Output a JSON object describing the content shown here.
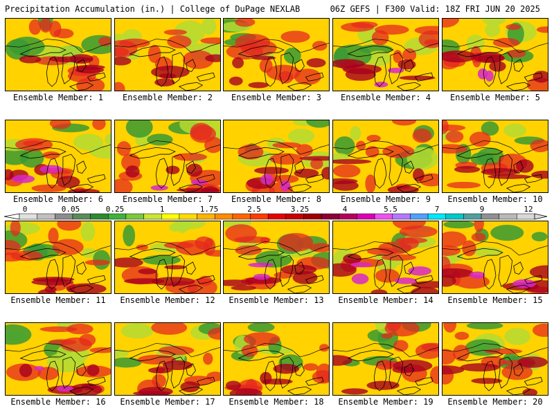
{
  "header": {
    "title": "Precipitation Accumulation (in.) | College of DuPage NEXLAB",
    "valid": "06Z GEFS | F300 Valid: 18Z FRI JUN 20 2025"
  },
  "members": [
    "Ensemble Member: 1",
    "Ensemble Member: 2",
    "Ensemble Member: 3",
    "Ensemble Member: 4",
    "Ensemble Member: 5",
    "Ensemble Member: 6",
    "Ensemble Member: 7",
    "Ensemble Member: 8",
    "Ensemble Member: 9",
    "Ensemble Member: 10",
    "Ensemble Member: 11",
    "Ensemble Member: 12",
    "Ensemble Member: 13",
    "Ensemble Member: 14",
    "Ensemble Member: 15",
    "Ensemble Member: 16",
    "Ensemble Member: 17",
    "Ensemble Member: 18",
    "Ensemble Member: 19",
    "Ensemble Member: 20"
  ],
  "legend": {
    "ticks": [
      "0",
      "0.05",
      "0.25",
      "1",
      "1.75",
      "2.5",
      "3.25",
      "4",
      "5.5",
      "7",
      "9",
      "12"
    ],
    "colors": [
      "#e0e0e0",
      "#c0c0c0",
      "#8c8c8c",
      "#5a8c5a",
      "#2e8b2e",
      "#3cb33c",
      "#7cc83c",
      "#c8e632",
      "#ffff00",
      "#ffdc00",
      "#ffb400",
      "#ff8c00",
      "#ff6400",
      "#ff3c00",
      "#e60000",
      "#c80000",
      "#a00000",
      "#8c0032",
      "#b4005a",
      "#dc00b4",
      "#f050f0",
      "#b478ff",
      "#50a0ff",
      "#00e6ff",
      "#00c8c8",
      "#50a0a0",
      "#909090",
      "#b8b8b8",
      "#d8d8d8"
    ]
  },
  "panel_scheme": {
    "background": "#ffd200",
    "wet": "#e6281e",
    "very_wet": "#a8001e",
    "extreme": "#d828c8",
    "dry": "#3a9a32",
    "semi_dry": "#b4dc32",
    "outline": "#000000"
  }
}
